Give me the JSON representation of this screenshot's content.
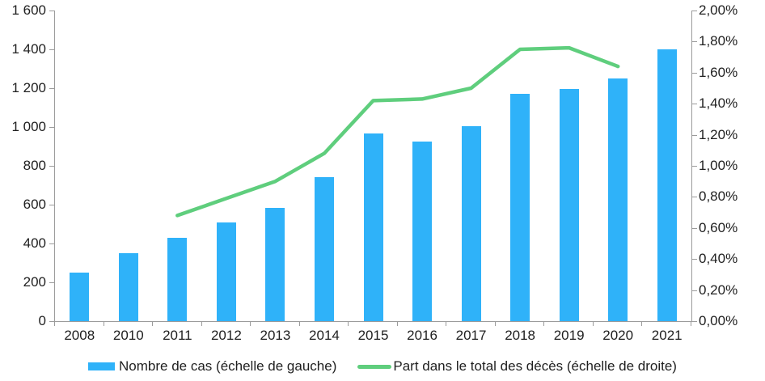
{
  "chart_data": {
    "type": "bar",
    "subtype": "bar-and-line-dual-axis",
    "title": "",
    "categories": [
      "2008",
      "2010",
      "2011",
      "2012",
      "2013",
      "2014",
      "2015",
      "2016",
      "2017",
      "2018",
      "2019",
      "2020",
      "2021"
    ],
    "series": [
      {
        "name": "Nombre de cas (échelle de gauche)",
        "type": "bar",
        "axis": "left",
        "values": [
          250,
          350,
          430,
          510,
          585,
          740,
          965,
          925,
          1005,
          1170,
          1195,
          1250,
          1400
        ]
      },
      {
        "name": "Part dans le total des décès (échelle de droite)",
        "type": "line",
        "axis": "right",
        "values": [
          null,
          null,
          0.68,
          0.79,
          0.9,
          1.08,
          1.42,
          1.43,
          1.5,
          1.75,
          1.76,
          1.64,
          null
        ]
      }
    ],
    "left_axis": {
      "min": 0,
      "max": 1600,
      "step": 200,
      "tick_labels_top_to_bottom": [
        "1 600",
        "1 400",
        "1 200",
        "1 000",
        "800",
        "600",
        "400",
        "200",
        "0"
      ]
    },
    "right_axis": {
      "min": 0,
      "max": 2,
      "step": 0.2,
      "unit": "%",
      "tick_labels_top_to_bottom": [
        "2,00%",
        "1,80%",
        "1,60%",
        "1,40%",
        "1,20%",
        "1,00%",
        "0,80%",
        "0,60%",
        "0,40%",
        "0,20%",
        "0,00%"
      ]
    },
    "grid": false,
    "legend_position": "bottom"
  },
  "legend": {
    "items": [
      {
        "label": "Nombre de cas (échelle de gauche)",
        "swatch": "bar"
      },
      {
        "label": "Part dans le total des décès (échelle de droite)",
        "swatch": "line"
      }
    ]
  },
  "colors": {
    "bar": "#2fb2f9",
    "line": "#5fce7d",
    "axis": "#9b9b9b",
    "text": "#1f1f1f",
    "background": "#ffffff"
  }
}
